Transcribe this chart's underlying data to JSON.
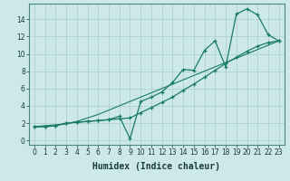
{
  "x": [
    0,
    1,
    2,
    3,
    4,
    5,
    6,
    7,
    8,
    9,
    10,
    11,
    12,
    13,
    14,
    15,
    16,
    17,
    18,
    19,
    20,
    21,
    22,
    23
  ],
  "line_jagged": [
    1.6,
    1.6,
    1.7,
    2.0,
    2.1,
    2.2,
    2.3,
    2.4,
    2.8,
    0.2,
    4.5,
    5.0,
    5.6,
    6.7,
    8.2,
    8.1,
    10.4,
    11.5,
    8.5,
    14.6,
    15.2,
    14.5,
    12.2,
    11.5
  ],
  "line_smooth": [
    1.6,
    1.6,
    1.7,
    2.0,
    2.1,
    2.2,
    2.3,
    2.4,
    2.5,
    2.6,
    3.2,
    3.8,
    4.4,
    5.0,
    5.8,
    6.5,
    7.3,
    8.1,
    8.9,
    9.6,
    10.3,
    10.9,
    11.3,
    11.5
  ],
  "line_straight": [
    1.6,
    1.7,
    1.8,
    1.9,
    2.2,
    2.6,
    3.0,
    3.5,
    4.0,
    4.5,
    5.0,
    5.5,
    6.0,
    6.5,
    7.0,
    7.5,
    8.0,
    8.5,
    9.0,
    9.5,
    10.0,
    10.5,
    11.0,
    11.5
  ],
  "line_color": "#1a7a6a",
  "bg_color": "#cce8e8",
  "grid_color": "#aacece",
  "xlabel": "Humidex (Indice chaleur)",
  "xlabel_fontsize": 7,
  "tick_fontsize": 5.5,
  "ylabel_ticks": [
    0,
    2,
    4,
    6,
    8,
    10,
    12,
    14
  ],
  "ylim": [
    -0.5,
    15.8
  ],
  "xlim": [
    -0.5,
    23.5
  ]
}
